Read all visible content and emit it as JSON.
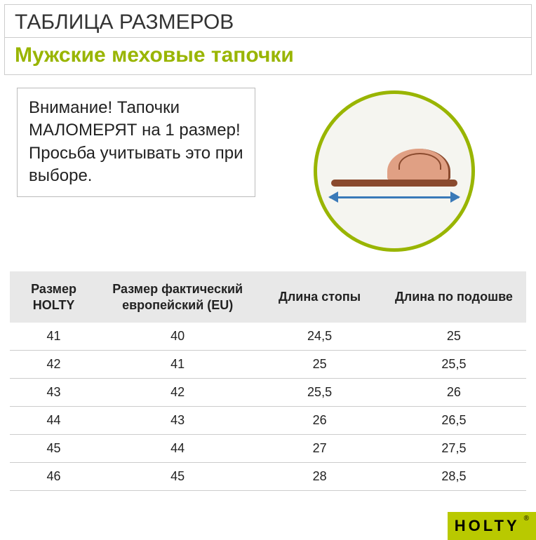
{
  "header": {
    "title": "ТАБЛИЦА РАЗМЕРОВ",
    "subtitle": "Мужские меховые тапочки",
    "title_color": "#333333",
    "subtitle_color": "#99b500"
  },
  "warning": {
    "text": "Внимание! Тапочки МАЛОМЕРЯТ на 1 размер!\nПросьба учитывать это при выборе."
  },
  "illustration": {
    "circle_border_color": "#99b500",
    "circle_bg": "#f5f5f0",
    "sole_color": "#8a4a2e",
    "upper_color": "#e0a084",
    "arrow_color": "#3a7ab8"
  },
  "table": {
    "type": "table",
    "header_bg": "#e8e8e8",
    "row_border_color": "#cccccc",
    "columns": [
      "Размер HOLTY",
      "Размер фактический европейский (EU)",
      "Длина стопы",
      "Длина по подошве"
    ],
    "rows": [
      [
        "41",
        "40",
        "24,5",
        "25"
      ],
      [
        "42",
        "41",
        "25",
        "25,5"
      ],
      [
        "43",
        "42",
        "25,5",
        "26"
      ],
      [
        "44",
        "43",
        "26",
        "26,5"
      ],
      [
        "45",
        "44",
        "27",
        "27,5"
      ],
      [
        "46",
        "45",
        "28",
        "28,5"
      ]
    ]
  },
  "logo": {
    "text": "HOLTY",
    "bg": "#b9c900",
    "reg": "®"
  }
}
